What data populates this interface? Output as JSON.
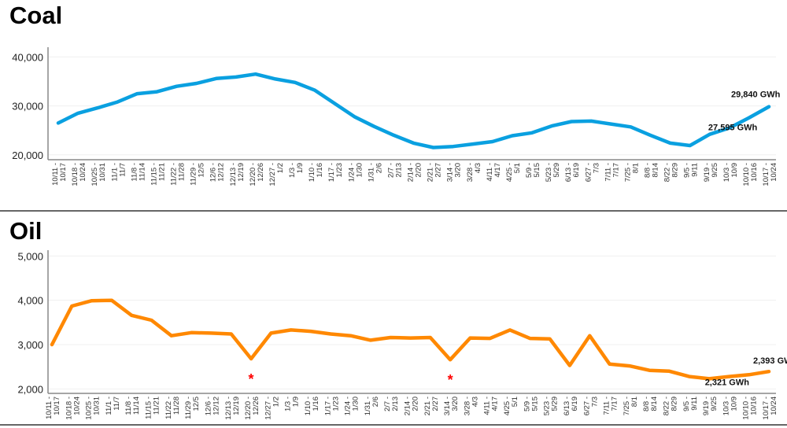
{
  "chart_data": [
    {
      "type": "line",
      "title": "Coal",
      "xlabel": "",
      "ylabel": "",
      "ylim": [
        19000,
        42000
      ],
      "yticks": [
        20000,
        30000,
        40000
      ],
      "ytick_labels": [
        "20,000",
        "30,000",
        "40,000"
      ],
      "grid": true,
      "color": "#0aa0e0",
      "categories": [
        [
          "10/11 -",
          "10/17"
        ],
        [
          "10/18 -",
          "10/24"
        ],
        [
          "10/25 -",
          "10/31"
        ],
        [
          "11/1 -",
          "11/7"
        ],
        [
          "11/8 -",
          "11/14"
        ],
        [
          "11/15 -",
          "11/21"
        ],
        [
          "11/22 -",
          "11/28"
        ],
        [
          "11/29 -",
          "12/5"
        ],
        [
          "12/6 -",
          "12/12"
        ],
        [
          "12/13 -",
          "12/19"
        ],
        [
          "12/20 -",
          "12/26"
        ],
        [
          "12/27 -",
          "1/2"
        ],
        [
          "1/3 -",
          "1/9"
        ],
        [
          "1/10 -",
          "1/16"
        ],
        [
          "1/17 -",
          "1/23"
        ],
        [
          "1/24 -",
          "1/30"
        ],
        [
          "1/31 -",
          "2/6"
        ],
        [
          "2/7 -",
          "2/13"
        ],
        [
          "2/14 -",
          "2/20"
        ],
        [
          "2/21 -",
          "2/27"
        ],
        [
          "3/14 -",
          "3/20"
        ],
        [
          "3/28 -",
          "4/3"
        ],
        [
          "4/11 -",
          "4/17"
        ],
        [
          "4/25 -",
          "5/1"
        ],
        [
          "5/9 -",
          "5/15"
        ],
        [
          "5/23 -",
          "5/29"
        ],
        [
          "6/13 -",
          "6/19"
        ],
        [
          "6/27 -",
          "7/3"
        ],
        [
          "7/11 -",
          "7/17"
        ],
        [
          "7/25 -",
          "8/1"
        ],
        [
          "8/8 -",
          "8/14"
        ],
        [
          "8/22 -",
          "8/29"
        ],
        [
          "9/5 -",
          "9/11"
        ],
        [
          "9/19 -",
          "9/25"
        ],
        [
          "10/3 -",
          "10/9"
        ],
        [
          "10/10 -",
          "10/16"
        ],
        [
          "10/17 -",
          "10/24"
        ]
      ],
      "values": [
        26500,
        28500,
        29600,
        30800,
        32500,
        32900,
        34000,
        34600,
        35600,
        35900,
        36500,
        35500,
        34800,
        33200,
        30500,
        27800,
        25800,
        24000,
        22400,
        21500,
        21700,
        22200,
        22700,
        23900,
        24500,
        25900,
        26800,
        26900,
        26300,
        25700,
        24000,
        22400,
        21900,
        24200,
        25500,
        27595,
        29840
      ],
      "annotations": [
        {
          "index": 36,
          "text": "29,840 GWh"
        },
        {
          "index": 35,
          "text": "27,595 GWh"
        }
      ]
    },
    {
      "type": "line",
      "title": "Oil",
      "xlabel": "",
      "ylabel": "",
      "ylim": [
        1900,
        5130
      ],
      "yticks": [
        2000,
        3000,
        4000,
        5000
      ],
      "ytick_labels": [
        "2,000",
        "3,000",
        "4,000",
        "5,000"
      ],
      "grid": true,
      "color": "#ff8800",
      "marker_color": "#ff0000",
      "categories": [
        [
          "10/11 -",
          "10/17"
        ],
        [
          "10/18 -",
          "10/24"
        ],
        [
          "10/25 -",
          "10/31"
        ],
        [
          "11/1 -",
          "11/7"
        ],
        [
          "11/8 -",
          "11/14"
        ],
        [
          "11/15 -",
          "11/21"
        ],
        [
          "11/22 -",
          "11/28"
        ],
        [
          "11/29 -",
          "12/5"
        ],
        [
          "12/6 -",
          "12/12"
        ],
        [
          "12/13 -",
          "12/19"
        ],
        [
          "12/20 -",
          "12/26"
        ],
        [
          "12/27 -",
          "1/2"
        ],
        [
          "1/3 -",
          "1/9"
        ],
        [
          "1/10 -",
          "1/16"
        ],
        [
          "1/17 -",
          "1/23"
        ],
        [
          "1/24 -",
          "1/30"
        ],
        [
          "1/31 -",
          "2/6"
        ],
        [
          "2/7 -",
          "2/13"
        ],
        [
          "2/14 -",
          "2/20"
        ],
        [
          "2/21 -",
          "2/27"
        ],
        [
          "3/14 -",
          "3/20"
        ],
        [
          "3/28 -",
          "4/3"
        ],
        [
          "4/11 -",
          "4/17"
        ],
        [
          "4/25 -",
          "5/1"
        ],
        [
          "5/9 -",
          "5/15"
        ],
        [
          "5/23 -",
          "5/29"
        ],
        [
          "6/13 -",
          "6/19"
        ],
        [
          "6/27 -",
          "7/3"
        ],
        [
          "7/11 -",
          "7/17"
        ],
        [
          "7/25 -",
          "8/1"
        ],
        [
          "8/8 -",
          "8/14"
        ],
        [
          "8/22 -",
          "8/29"
        ],
        [
          "9/5 -",
          "9/11"
        ],
        [
          "9/19 -",
          "9/25"
        ],
        [
          "10/3 -",
          "10/9"
        ],
        [
          "10/10 -",
          "10/16"
        ],
        [
          "10/17 -",
          "10/24"
        ]
      ],
      "values": [
        3000,
        3870,
        3990,
        4000,
        3660,
        3550,
        3200,
        3270,
        3260,
        3240,
        2680,
        3260,
        3330,
        3300,
        3240,
        3200,
        3100,
        3160,
        3150,
        3160,
        2660,
        3150,
        3140,
        3330,
        3140,
        3130,
        2530,
        3200,
        2560,
        2520,
        2420,
        2400,
        2280,
        2230,
        2280,
        2321,
        2393
      ],
      "asterisks": [
        10,
        20
      ],
      "annotations": [
        {
          "index": 36,
          "text": "2,393 GWh"
        },
        {
          "index": 35,
          "text": "2,321 GWh"
        }
      ]
    }
  ]
}
